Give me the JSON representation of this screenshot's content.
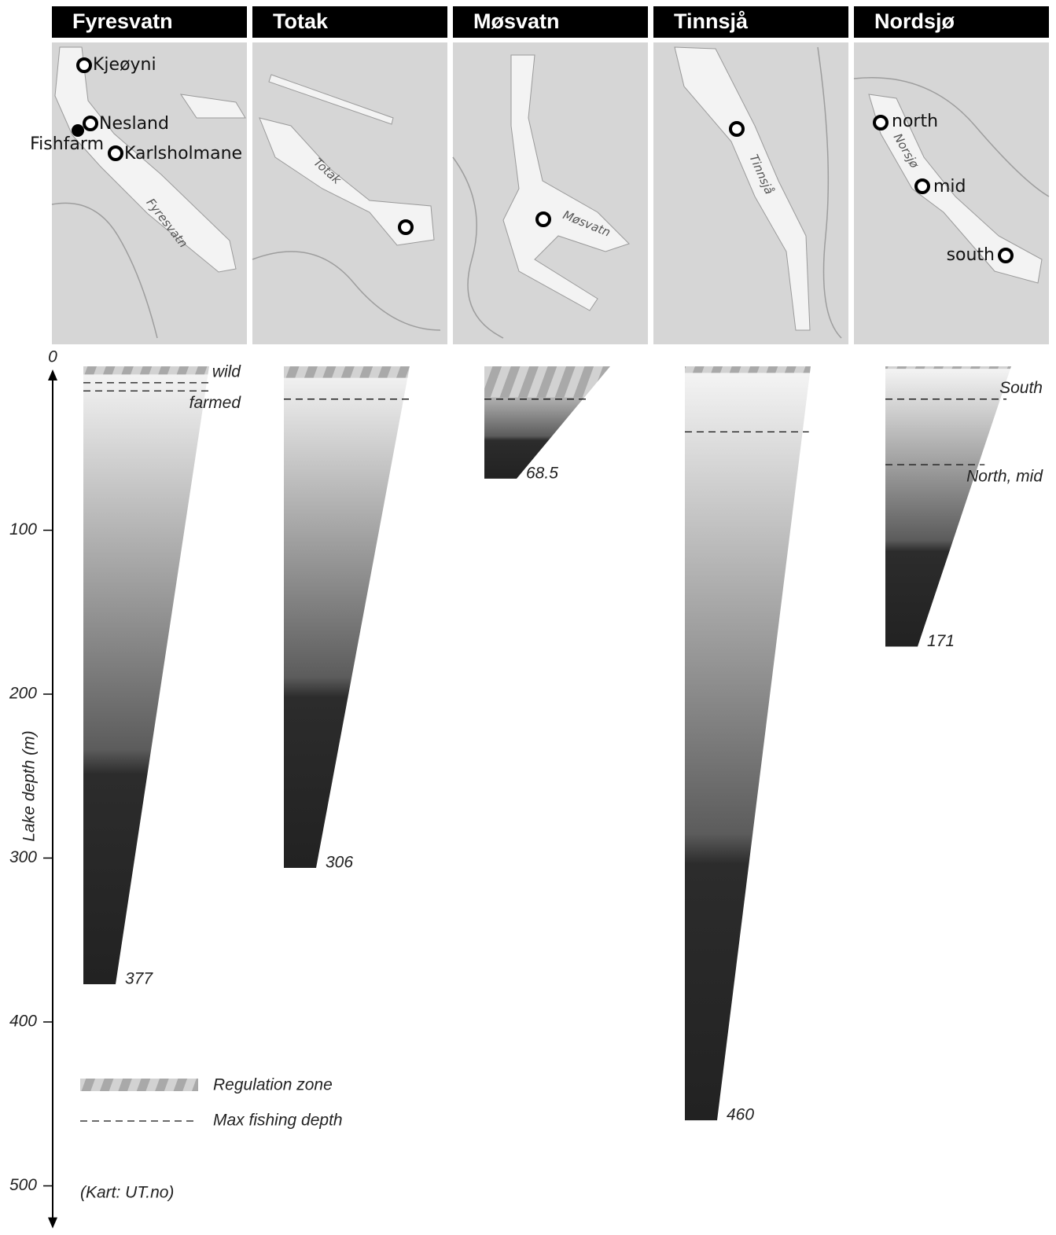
{
  "chart_data": {
    "type": "depth-profile",
    "categories": [
      "Fyresvatn",
      "Totak",
      "Møsvatn",
      "Tinnsjå",
      "Nordsjø"
    ],
    "max_depth": [
      377,
      306,
      68.5,
      460,
      171
    ],
    "regulation_depth": [
      5,
      7,
      19,
      4,
      1.5
    ],
    "fishing_depths": [
      [
        {
          "value": 10,
          "label": "wild"
        },
        {
          "value": 15,
          "label": "farmed"
        }
      ],
      [
        {
          "value": 20
        }
      ],
      [
        {
          "value": 20
        }
      ],
      [
        {
          "value": 40
        }
      ],
      [
        {
          "value": 20,
          "label": "South"
        },
        {
          "value": 60,
          "label": "North, mid"
        }
      ]
    ],
    "ylabel": "Lake depth (m)",
    "ylim": [
      0,
      525
    ],
    "yticks": [
      0,
      100,
      200,
      300,
      400,
      500
    ],
    "legend": [
      "Regulation zone",
      "Max fishing depth"
    ],
    "note": "(Kart: UT.no)"
  },
  "maps": [
    {
      "lake_label": "Fyresvatn",
      "sites": [
        "Kjeøyni",
        "Nesland",
        "Fishfarm",
        "Karlsholmane"
      ]
    },
    {
      "lake_label": "Totak",
      "sites": []
    },
    {
      "lake_label": "Møsvatn",
      "sites": []
    },
    {
      "lake_label": "Tinnsjå",
      "sites": []
    },
    {
      "lake_label": "Norsjø",
      "sites": [
        "north",
        "mid",
        "south"
      ]
    }
  ]
}
